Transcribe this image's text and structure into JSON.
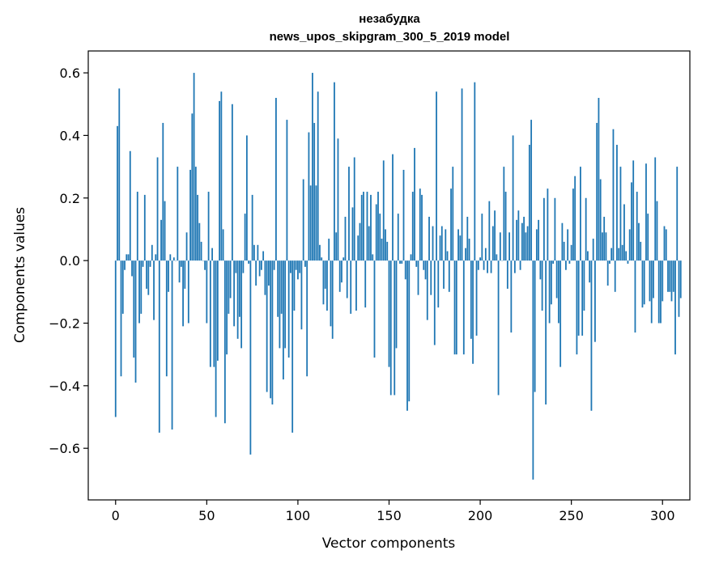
{
  "chart_data": {
    "type": "bar",
    "title_lines": [
      "незабудка",
      "news_upos_skipgram_300_5_2019 model"
    ],
    "xlabel": "Vector components",
    "ylabel": "Components values",
    "xlim": [
      -15,
      315
    ],
    "ylim": [
      -0.765,
      0.67
    ],
    "xticks": [
      0,
      50,
      100,
      150,
      200,
      250,
      300
    ],
    "xtick_labels": [
      "0",
      "50",
      "100",
      "150",
      "200",
      "250",
      "300"
    ],
    "yticks": [
      -0.6,
      -0.4,
      -0.2,
      0.0,
      0.2,
      0.4,
      0.6
    ],
    "ytick_labels": [
      "−0.6",
      "−0.4",
      "−0.2",
      "0.0",
      "0.2",
      "0.4",
      "0.6"
    ],
    "grid": false,
    "bar_color": "#1f77b4",
    "values": [
      -0.5,
      0.43,
      0.55,
      -0.37,
      -0.17,
      -0.03,
      0.02,
      0.02,
      0.35,
      -0.05,
      -0.31,
      -0.39,
      0.22,
      -0.2,
      -0.17,
      -0.02,
      0.21,
      -0.09,
      -0.11,
      -0.02,
      0.05,
      -0.19,
      0.02,
      0.33,
      -0.55,
      0.13,
      0.44,
      0.19,
      -0.37,
      -0.1,
      0.02,
      -0.54,
      0.01,
      0.0,
      0.3,
      -0.07,
      -0.02,
      -0.21,
      -0.09,
      0.09,
      -0.2,
      0.29,
      0.47,
      0.6,
      0.3,
      0.21,
      0.12,
      0.06,
      0.0,
      -0.03,
      -0.2,
      0.22,
      -0.34,
      0.04,
      -0.34,
      -0.5,
      -0.32,
      0.51,
      0.54,
      0.1,
      -0.52,
      -0.3,
      -0.17,
      -0.12,
      0.5,
      -0.21,
      -0.04,
      -0.25,
      -0.18,
      -0.28,
      -0.04,
      0.15,
      0.4,
      -0.01,
      -0.62,
      0.21,
      0.05,
      -0.08,
      0.05,
      -0.05,
      -0.03,
      0.03,
      -0.11,
      -0.42,
      -0.08,
      -0.44,
      -0.46,
      -0.03,
      0.52,
      -0.18,
      -0.28,
      -0.17,
      -0.38,
      -0.28,
      0.45,
      -0.31,
      -0.04,
      -0.55,
      -0.16,
      -0.03,
      -0.06,
      -0.04,
      -0.22,
      0.26,
      -0.02,
      -0.37,
      0.41,
      0.24,
      0.6,
      0.44,
      0.24,
      0.54,
      0.05,
      0.01,
      -0.14,
      -0.09,
      -0.16,
      0.07,
      -0.21,
      -0.25,
      0.57,
      0.09,
      0.39,
      -0.1,
      -0.07,
      0.01,
      0.14,
      -0.12,
      0.3,
      -0.17,
      0.17,
      0.33,
      -0.16,
      0.08,
      0.12,
      0.21,
      0.22,
      -0.15,
      0.22,
      0.11,
      0.21,
      0.02,
      -0.31,
      0.18,
      0.22,
      0.15,
      0.07,
      0.32,
      0.1,
      0.06,
      -0.34,
      -0.43,
      0.34,
      -0.43,
      -0.28,
      0.15,
      -0.01,
      -0.01,
      0.29,
      -0.06,
      -0.48,
      -0.45,
      0.02,
      0.22,
      0.36,
      -0.02,
      -0.11,
      0.23,
      0.21,
      -0.03,
      -0.06,
      -0.19,
      0.14,
      -0.11,
      0.11,
      -0.27,
      0.54,
      -0.15,
      0.08,
      0.11,
      -0.09,
      0.1,
      0.03,
      -0.1,
      0.23,
      0.3,
      -0.3,
      -0.3,
      0.1,
      0.08,
      0.55,
      -0.3,
      0.04,
      0.14,
      0.07,
      -0.25,
      -0.33,
      0.57,
      -0.24,
      -0.03,
      0.01,
      0.15,
      -0.03,
      0.04,
      -0.04,
      0.19,
      -0.04,
      0.11,
      0.16,
      0.02,
      -0.43,
      0.09,
      0.0,
      0.3,
      0.22,
      -0.09,
      0.09,
      -0.23,
      0.4,
      -0.04,
      0.13,
      0.16,
      -0.03,
      0.12,
      0.14,
      0.09,
      0.11,
      0.37,
      0.45,
      -0.7,
      -0.42,
      0.1,
      0.13,
      -0.06,
      -0.16,
      0.2,
      -0.46,
      0.23,
      -0.2,
      -0.14,
      -0.01,
      0.2,
      -0.12,
      -0.2,
      -0.34,
      0.12,
      0.06,
      -0.03,
      0.1,
      -0.01,
      0.05,
      0.23,
      0.27,
      -0.3,
      -0.24,
      0.3,
      -0.24,
      -0.16,
      0.2,
      0.03,
      -0.07,
      -0.48,
      0.07,
      -0.26,
      0.44,
      0.52,
      0.26,
      0.09,
      0.14,
      0.09,
      -0.08,
      -0.01,
      0.04,
      0.42,
      -0.1,
      0.37,
      0.04,
      0.3,
      0.05,
      0.18,
      0.03,
      -0.01,
      0.1,
      0.25,
      0.32,
      -0.23,
      0.22,
      0.12,
      0.06,
      -0.15,
      -0.14,
      0.31,
      0.15,
      -0.13,
      -0.2,
      -0.12,
      0.33,
      0.19,
      -0.2,
      -0.2,
      -0.13,
      0.11,
      0.1,
      -0.1,
      -0.1,
      -0.13,
      -0.1,
      -0.3,
      0.3,
      -0.18,
      -0.12
    ]
  }
}
